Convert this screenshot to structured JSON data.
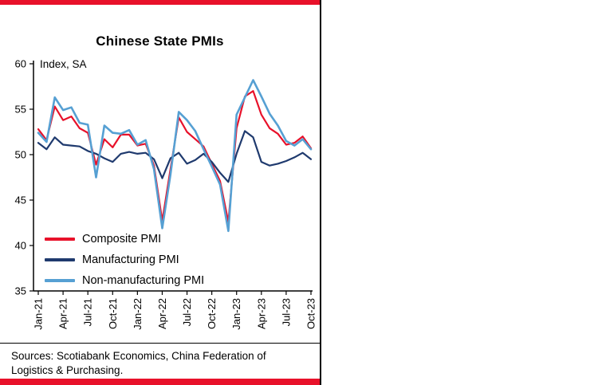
{
  "chart": {
    "title": "Chinese State PMIs",
    "axis_note": "Index, SA",
    "sources": "Sources: Scotiabank Economics, China Federation of Logistics & Purchasing.",
    "accent_red": "#e8112a"
  },
  "chart_data": {
    "type": "line",
    "title": "Chinese State PMIs",
    "xlabel": "",
    "ylabel": "Index, SA",
    "ylim": [
      35,
      60
    ],
    "ytick_step": 5,
    "grid": false,
    "legend_position": "inside-bottom-left",
    "xtick_every": 3,
    "x": [
      "Jan-21",
      "Feb-21",
      "Mar-21",
      "Apr-21",
      "May-21",
      "Jun-21",
      "Jul-21",
      "Aug-21",
      "Sep-21",
      "Oct-21",
      "Nov-21",
      "Dec-21",
      "Jan-22",
      "Feb-22",
      "Mar-22",
      "Apr-22",
      "May-22",
      "Jun-22",
      "Jul-22",
      "Aug-22",
      "Sep-22",
      "Oct-22",
      "Nov-22",
      "Dec-22",
      "Jan-23",
      "Feb-23",
      "Mar-23",
      "Apr-23",
      "May-23",
      "Jun-23",
      "Jul-23",
      "Aug-23",
      "Sep-23",
      "Oct-23"
    ],
    "series": [
      {
        "name": "Composite PMI",
        "color": "#e8112a",
        "width": 2.2,
        "values": [
          52.8,
          51.6,
          55.3,
          53.8,
          54.2,
          52.9,
          52.4,
          48.9,
          51.7,
          50.8,
          52.2,
          52.2,
          51.0,
          51.2,
          48.8,
          42.7,
          48.4,
          54.1,
          52.5,
          51.7,
          50.9,
          49.0,
          47.1,
          42.6,
          52.9,
          56.4,
          57.0,
          54.4,
          52.9,
          52.3,
          51.1,
          51.3,
          52.0,
          50.7
        ]
      },
      {
        "name": "Manufacturing PMI",
        "color": "#1f3a6e",
        "width": 2.2,
        "values": [
          51.3,
          50.6,
          51.9,
          51.1,
          51.0,
          50.9,
          50.4,
          50.1,
          49.6,
          49.2,
          50.1,
          50.3,
          50.1,
          50.2,
          49.5,
          47.4,
          49.6,
          50.2,
          49.0,
          49.4,
          50.1,
          49.2,
          48.0,
          47.0,
          50.1,
          52.6,
          51.9,
          49.2,
          48.8,
          49.0,
          49.3,
          49.7,
          50.2,
          49.5
        ]
      },
      {
        "name": "Non-manufacturing PMI",
        "color": "#56a0d3",
        "width": 2.6,
        "values": [
          52.4,
          51.4,
          56.3,
          54.9,
          55.2,
          53.5,
          53.3,
          47.5,
          53.2,
          52.4,
          52.3,
          52.7,
          51.1,
          51.6,
          48.4,
          41.9,
          47.8,
          54.7,
          53.8,
          52.6,
          50.6,
          48.7,
          46.7,
          41.6,
          54.4,
          56.3,
          58.2,
          56.4,
          54.5,
          53.2,
          51.5,
          51.0,
          51.7,
          50.6
        ]
      }
    ]
  }
}
